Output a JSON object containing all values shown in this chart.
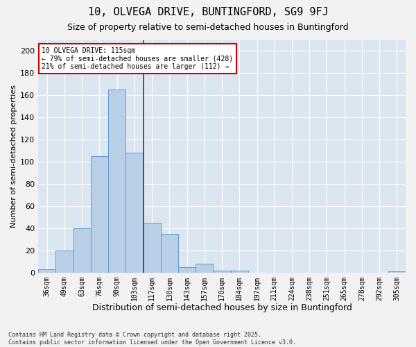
{
  "title_line1": "10, OLVEGA DRIVE, BUNTINGFORD, SG9 9FJ",
  "title_line2": "Size of property relative to semi-detached houses in Buntingford",
  "xlabel": "Distribution of semi-detached houses by size in Buntingford",
  "ylabel": "Number of semi-detached properties",
  "categories": [
    "36sqm",
    "49sqm",
    "63sqm",
    "76sqm",
    "90sqm",
    "103sqm",
    "117sqm",
    "130sqm",
    "143sqm",
    "157sqm",
    "170sqm",
    "184sqm",
    "197sqm",
    "211sqm",
    "224sqm",
    "238sqm",
    "251sqm",
    "265sqm",
    "278sqm",
    "292sqm",
    "305sqm"
  ],
  "values": [
    3,
    20,
    40,
    105,
    165,
    108,
    45,
    35,
    5,
    8,
    2,
    2,
    0,
    0,
    0,
    0,
    0,
    0,
    0,
    0,
    1
  ],
  "bar_color": "#b8cfe8",
  "bar_edge_color": "#6699cc",
  "background_color": "#dce6f1",
  "grid_color": "#ffffff",
  "vline_color": "#cc0000",
  "annotation_text": "10 OLVEGA DRIVE: 115sqm\n← 79% of semi-detached houses are smaller (428)\n21% of semi-detached houses are larger (112) →",
  "annotation_box_color": "#ffffff",
  "annotation_box_edge": "#cc0000",
  "ylim": [
    0,
    210
  ],
  "yticks": [
    0,
    20,
    40,
    60,
    80,
    100,
    120,
    140,
    160,
    180,
    200
  ],
  "footer_text": "Contains HM Land Registry data © Crown copyright and database right 2025.\nContains public sector information licensed under the Open Government Licence v3.0.",
  "fig_bg": "#f2f2f2"
}
